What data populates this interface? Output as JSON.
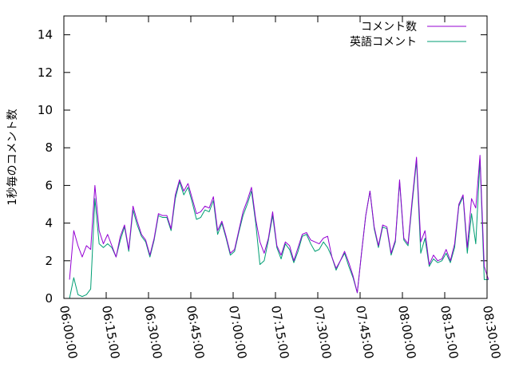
{
  "chart_data": {
    "type": "line",
    "ylabel": "1秒毎のコメント数",
    "xlabel": "",
    "ylim": [
      0,
      15
    ],
    "xlim": [
      "06:00:00",
      "08:30:00"
    ],
    "y_ticks": [
      "0",
      "2",
      "4",
      "6",
      "8",
      "10",
      "12",
      "14"
    ],
    "x_ticks": [
      "06:00:00",
      "06:15:00",
      "06:30:00",
      "06:45:00",
      "07:00:00",
      "07:15:00",
      "07:30:00",
      "07:45:00",
      "08:00:00",
      "08:15:00",
      "08:30:00"
    ],
    "grid": false,
    "legend_position": "top-right",
    "series": [
      {
        "name": "コメント数",
        "color": "#9400d3",
        "points": [
          [
            "06:02:00",
            1.0
          ],
          [
            "06:03:30",
            3.6
          ],
          [
            "06:05:00",
            2.8
          ],
          [
            "06:06:30",
            2.2
          ],
          [
            "06:08:00",
            2.8
          ],
          [
            "06:09:30",
            2.6
          ],
          [
            "06:11:00",
            6.0
          ],
          [
            "06:12:30",
            3.6
          ],
          [
            "06:14:00",
            2.9
          ],
          [
            "06:15:30",
            3.4
          ],
          [
            "06:17:00",
            2.8
          ],
          [
            "06:18:30",
            2.2
          ],
          [
            "06:20:00",
            3.3
          ],
          [
            "06:21:30",
            3.9
          ],
          [
            "06:23:00",
            2.6
          ],
          [
            "06:24:30",
            4.9
          ],
          [
            "06:26:00",
            4.1
          ],
          [
            "06:27:30",
            3.4
          ],
          [
            "06:29:00",
            3.1
          ],
          [
            "06:30:30",
            2.3
          ],
          [
            "06:32:00",
            3.2
          ],
          [
            "06:33:30",
            4.5
          ],
          [
            "06:35:00",
            4.4
          ],
          [
            "06:36:30",
            4.4
          ],
          [
            "06:38:00",
            3.7
          ],
          [
            "06:39:30",
            5.5
          ],
          [
            "06:41:00",
            6.3
          ],
          [
            "06:42:30",
            5.7
          ],
          [
            "06:44:00",
            6.1
          ],
          [
            "06:45:30",
            5.3
          ],
          [
            "06:47:00",
            4.5
          ],
          [
            "06:48:30",
            4.6
          ],
          [
            "06:50:00",
            4.9
          ],
          [
            "06:51:30",
            4.8
          ],
          [
            "06:53:00",
            5.4
          ],
          [
            "06:54:30",
            3.6
          ],
          [
            "06:56:00",
            4.1
          ],
          [
            "06:57:30",
            3.3
          ],
          [
            "06:59:00",
            2.4
          ],
          [
            "07:00:30",
            2.6
          ],
          [
            "07:02:00",
            3.6
          ],
          [
            "07:03:30",
            4.6
          ],
          [
            "07:05:00",
            5.2
          ],
          [
            "07:06:30",
            5.9
          ],
          [
            "07:08:00",
            4.2
          ],
          [
            "07:09:30",
            3.0
          ],
          [
            "07:11:00",
            2.4
          ],
          [
            "07:12:30",
            3.2
          ],
          [
            "07:14:00",
            4.6
          ],
          [
            "07:15:30",
            2.8
          ],
          [
            "07:17:00",
            2.3
          ],
          [
            "07:18:30",
            3.0
          ],
          [
            "07:20:00",
            2.8
          ],
          [
            "07:21:30",
            2.0
          ],
          [
            "07:23:00",
            2.7
          ],
          [
            "07:24:30",
            3.4
          ],
          [
            "07:26:00",
            3.5
          ],
          [
            "07:27:30",
            3.1
          ],
          [
            "07:29:00",
            3.0
          ],
          [
            "07:30:30",
            2.9
          ],
          [
            "07:32:00",
            3.2
          ],
          [
            "07:33:30",
            3.3
          ],
          [
            "07:35:00",
            2.2
          ],
          [
            "07:36:30",
            1.6
          ],
          [
            "07:38:00",
            2.0
          ],
          [
            "07:39:30",
            2.5
          ],
          [
            "07:41:00",
            1.9
          ],
          [
            "07:42:30",
            1.2
          ],
          [
            "07:44:00",
            0.3
          ],
          [
            "07:45:30",
            2.4
          ],
          [
            "07:47:00",
            4.4
          ],
          [
            "07:48:30",
            5.7
          ],
          [
            "07:50:00",
            3.8
          ],
          [
            "07:51:30",
            2.8
          ],
          [
            "07:53:00",
            3.9
          ],
          [
            "07:54:30",
            3.8
          ],
          [
            "07:56:00",
            2.4
          ],
          [
            "07:57:30",
            3.1
          ],
          [
            "07:59:00",
            6.3
          ],
          [
            "08:00:30",
            3.2
          ],
          [
            "08:02:00",
            2.9
          ],
          [
            "08:03:30",
            5.3
          ],
          [
            "08:05:00",
            7.5
          ],
          [
            "08:06:30",
            3.0
          ],
          [
            "08:08:00",
            3.6
          ],
          [
            "08:09:30",
            1.8
          ],
          [
            "08:11:00",
            2.3
          ],
          [
            "08:12:30",
            2.0
          ],
          [
            "08:14:00",
            2.1
          ],
          [
            "08:15:30",
            2.6
          ],
          [
            "08:17:00",
            2.0
          ],
          [
            "08:18:30",
            2.9
          ],
          [
            "08:20:00",
            5.0
          ],
          [
            "08:21:30",
            5.5
          ],
          [
            "08:23:00",
            2.7
          ],
          [
            "08:24:30",
            5.3
          ],
          [
            "08:26:00",
            4.8
          ],
          [
            "08:27:30",
            7.6
          ],
          [
            "08:29:00",
            1.7
          ],
          [
            "08:30:30",
            1.0
          ]
        ]
      },
      {
        "name": "英語コメント",
        "color": "#009e73",
        "points": [
          [
            "06:02:00",
            0.0
          ],
          [
            "06:03:30",
            1.1
          ],
          [
            "06:05:00",
            0.2
          ],
          [
            "06:06:30",
            0.1
          ],
          [
            "06:08:00",
            0.2
          ],
          [
            "06:09:30",
            0.5
          ],
          [
            "06:11:00",
            5.3
          ],
          [
            "06:12:30",
            2.9
          ],
          [
            "06:14:00",
            2.7
          ],
          [
            "06:15:30",
            2.9
          ],
          [
            "06:17:00",
            2.7
          ],
          [
            "06:18:30",
            2.2
          ],
          [
            "06:20:00",
            3.1
          ],
          [
            "06:21:30",
            3.8
          ],
          [
            "06:23:00",
            2.5
          ],
          [
            "06:24:30",
            4.7
          ],
          [
            "06:26:00",
            3.9
          ],
          [
            "06:27:30",
            3.3
          ],
          [
            "06:29:00",
            3.0
          ],
          [
            "06:30:30",
            2.2
          ],
          [
            "06:32:00",
            3.1
          ],
          [
            "06:33:30",
            4.4
          ],
          [
            "06:35:00",
            4.3
          ],
          [
            "06:36:30",
            4.3
          ],
          [
            "06:38:00",
            3.6
          ],
          [
            "06:39:30",
            5.3
          ],
          [
            "06:41:00",
            6.2
          ],
          [
            "06:42:30",
            5.5
          ],
          [
            "06:44:00",
            5.9
          ],
          [
            "06:45:30",
            5.1
          ],
          [
            "06:47:00",
            4.2
          ],
          [
            "06:48:30",
            4.3
          ],
          [
            "06:50:00",
            4.7
          ],
          [
            "06:51:30",
            4.6
          ],
          [
            "06:53:00",
            5.2
          ],
          [
            "06:54:30",
            3.4
          ],
          [
            "06:56:00",
            4.0
          ],
          [
            "06:57:30",
            3.2
          ],
          [
            "06:59:00",
            2.3
          ],
          [
            "07:00:30",
            2.5
          ],
          [
            "07:02:00",
            3.5
          ],
          [
            "07:03:30",
            4.4
          ],
          [
            "07:05:00",
            5.0
          ],
          [
            "07:06:30",
            5.7
          ],
          [
            "07:08:00",
            4.0
          ],
          [
            "07:09:30",
            1.8
          ],
          [
            "07:11:00",
            2.0
          ],
          [
            "07:12:30",
            3.1
          ],
          [
            "07:14:00",
            4.4
          ],
          [
            "07:15:30",
            2.7
          ],
          [
            "07:17:00",
            2.1
          ],
          [
            "07:18:30",
            2.9
          ],
          [
            "07:20:00",
            2.6
          ],
          [
            "07:21:30",
            1.9
          ],
          [
            "07:23:00",
            2.5
          ],
          [
            "07:24:30",
            3.3
          ],
          [
            "07:26:00",
            3.4
          ],
          [
            "07:27:30",
            2.9
          ],
          [
            "07:29:00",
            2.5
          ],
          [
            "07:30:30",
            2.6
          ],
          [
            "07:32:00",
            3.0
          ],
          [
            "07:33:30",
            2.7
          ],
          [
            "07:35:00",
            2.2
          ],
          [
            "07:36:30",
            1.5
          ],
          [
            "07:38:00",
            2.0
          ],
          [
            "07:39:30",
            2.4
          ],
          [
            "07:41:00",
            1.7
          ],
          [
            "07:42:30",
            1.1
          ],
          [
            "07:44:00",
            0.3
          ],
          [
            "07:45:30",
            2.4
          ],
          [
            "07:47:00",
            4.4
          ],
          [
            "07:48:30",
            5.7
          ],
          [
            "07:50:00",
            3.7
          ],
          [
            "07:51:30",
            2.7
          ],
          [
            "07:53:00",
            3.8
          ],
          [
            "07:54:30",
            3.7
          ],
          [
            "07:56:00",
            2.3
          ],
          [
            "07:57:30",
            3.0
          ],
          [
            "07:59:00",
            6.2
          ],
          [
            "08:00:30",
            3.1
          ],
          [
            "08:02:00",
            2.8
          ],
          [
            "08:03:30",
            5.1
          ],
          [
            "08:05:00",
            7.3
          ],
          [
            "08:06:30",
            2.4
          ],
          [
            "08:08:00",
            3.2
          ],
          [
            "08:09:30",
            1.7
          ],
          [
            "08:11:00",
            2.1
          ],
          [
            "08:12:30",
            1.9
          ],
          [
            "08:14:00",
            2.0
          ],
          [
            "08:15:30",
            2.4
          ],
          [
            "08:17:00",
            1.9
          ],
          [
            "08:18:30",
            2.7
          ],
          [
            "08:20:00",
            4.9
          ],
          [
            "08:21:30",
            5.4
          ],
          [
            "08:23:00",
            2.4
          ],
          [
            "08:24:30",
            4.5
          ],
          [
            "08:26:00",
            2.9
          ],
          [
            "08:27:30",
            7.4
          ],
          [
            "08:29:00",
            1.0
          ],
          [
            "08:30:30",
            1.0
          ]
        ]
      }
    ]
  }
}
